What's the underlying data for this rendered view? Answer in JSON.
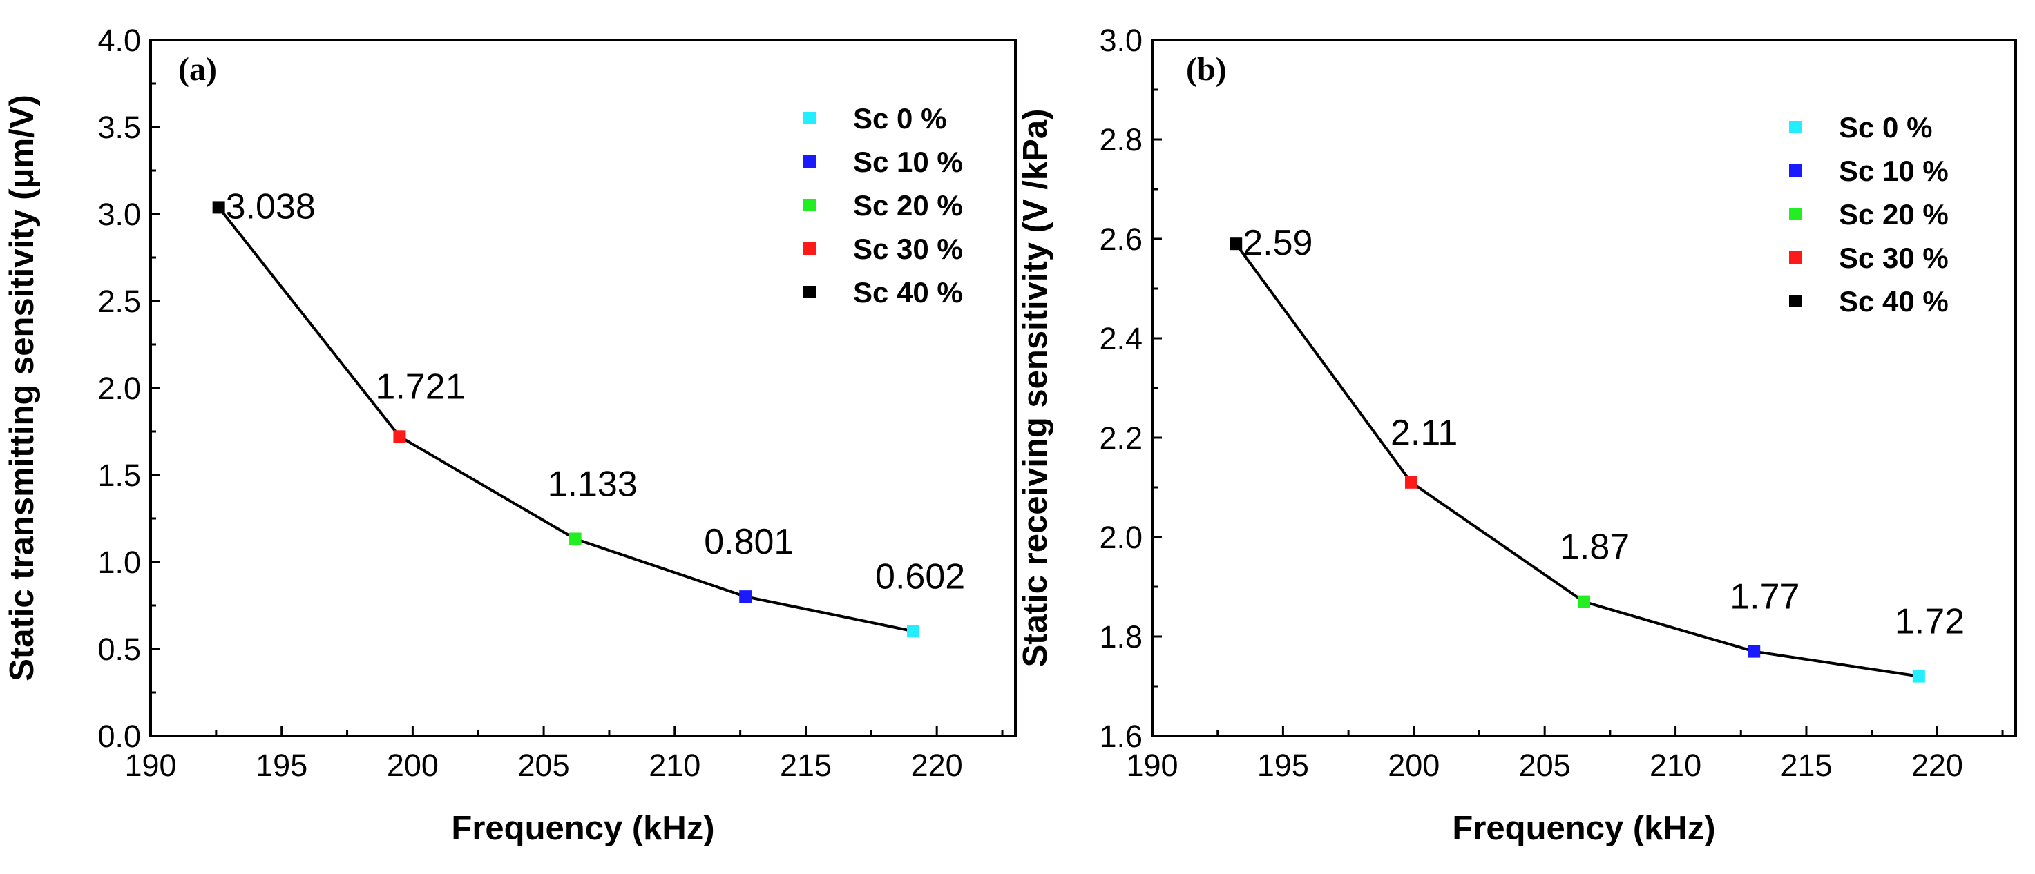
{
  "chart_data": [
    {
      "type": "line",
      "panel_label": "(a)",
      "xlabel": "Frequency (kHz)",
      "ylabel": "Static transmitting sensitivity (μm/V)",
      "xlim": [
        190,
        223
      ],
      "ylim": [
        0.0,
        4.0
      ],
      "xticks": [
        190,
        195,
        200,
        205,
        210,
        215,
        220
      ],
      "xtick_labels": [
        "190",
        "195",
        "200",
        "205",
        "210",
        "215",
        "220"
      ],
      "yticks": [
        0.0,
        0.5,
        1.0,
        1.5,
        2.0,
        2.5,
        3.0,
        3.5,
        4.0
      ],
      "ytick_labels": [
        "0.0",
        "0.5",
        "1.0",
        "1.5",
        "2.0",
        "2.5",
        "3.0",
        "3.5",
        "4.0"
      ],
      "legend_position": "top-right",
      "points": [
        {
          "series": "Sc 40 %",
          "x": 192.6,
          "y": 3.038,
          "label": "3.038",
          "color": "#000000"
        },
        {
          "series": "Sc 30 %",
          "x": 199.5,
          "y": 1.721,
          "label": "1.721",
          "color": "#ff1a1a"
        },
        {
          "series": "Sc 20 %",
          "x": 206.2,
          "y": 1.133,
          "label": "1.133",
          "color": "#22ee22"
        },
        {
          "series": "Sc 10 %",
          "x": 212.7,
          "y": 0.801,
          "label": "0.801",
          "color": "#1a1aff"
        },
        {
          "series": "Sc 0 %",
          "x": 219.1,
          "y": 0.602,
          "label": "0.602",
          "color": "#22eeff"
        }
      ],
      "legend": [
        {
          "name": "Sc 0 %",
          "color": "#22eeff"
        },
        {
          "name": "Sc 10 %",
          "color": "#1a1aff"
        },
        {
          "name": "Sc 20 %",
          "color": "#22ee22"
        },
        {
          "name": "Sc 30 %",
          "color": "#ff1a1a"
        },
        {
          "name": "Sc 40 %",
          "color": "#000000"
        }
      ]
    },
    {
      "type": "line",
      "panel_label": "(b)",
      "xlabel": "Frequency (kHz)",
      "ylabel": "Static receiving sensitivity (V /kPa)",
      "xlim": [
        190,
        223
      ],
      "ylim": [
        1.6,
        3.0
      ],
      "xticks": [
        190,
        195,
        200,
        205,
        210,
        215,
        220
      ],
      "xtick_labels": [
        "190",
        "195",
        "200",
        "205",
        "210",
        "215",
        "220"
      ],
      "yticks": [
        1.6,
        1.8,
        2.0,
        2.2,
        2.4,
        2.6,
        2.8,
        3.0
      ],
      "ytick_labels": [
        "1.6",
        "1.8",
        "2.0",
        "2.2",
        "2.4",
        "2.6",
        "2.8",
        "3.0"
      ],
      "legend_position": "top-right",
      "points": [
        {
          "series": "Sc 40 %",
          "x": 193.2,
          "y": 2.59,
          "label": "2.59",
          "color": "#000000"
        },
        {
          "series": "Sc 30 %",
          "x": 199.9,
          "y": 2.11,
          "label": "2.11",
          "color": "#ff1a1a"
        },
        {
          "series": "Sc 20 %",
          "x": 206.5,
          "y": 1.87,
          "label": "1.87",
          "color": "#22ee22"
        },
        {
          "series": "Sc 10 %",
          "x": 213.0,
          "y": 1.77,
          "label": "1.77",
          "color": "#1a1aff"
        },
        {
          "series": "Sc 0 %",
          "x": 219.3,
          "y": 1.72,
          "label": "1.72",
          "color": "#22eeff"
        }
      ],
      "legend": [
        {
          "name": "Sc 0 %",
          "color": "#22eeff"
        },
        {
          "name": "Sc 10 %",
          "color": "#1a1aff"
        },
        {
          "name": "Sc 20 %",
          "color": "#22ee22"
        },
        {
          "name": "Sc 30 %",
          "color": "#ff1a1a"
        },
        {
          "name": "Sc 40 %",
          "color": "#000000"
        }
      ]
    }
  ]
}
